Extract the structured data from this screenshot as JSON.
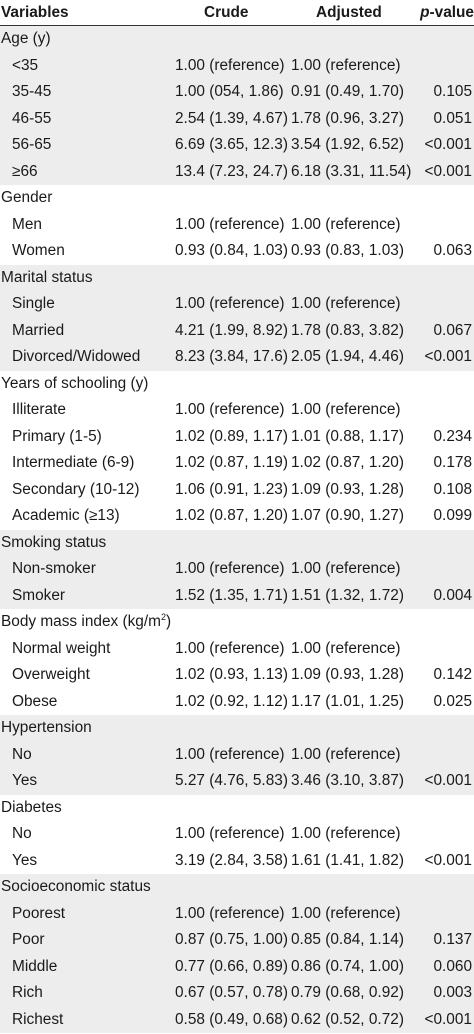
{
  "header": {
    "variables": "Variables",
    "crude": "Crude",
    "adjusted": "Adjusted",
    "p_italic": "p",
    "p_rest": "-value"
  },
  "groups": [
    {
      "title": "Age (y)",
      "rows": [
        {
          "label": "<35",
          "crude": "1.00 (reference)",
          "adjusted": "1.00 (reference)",
          "p": ""
        },
        {
          "label": "35-45",
          "crude": "1.00 (054, 1.86)",
          "adjusted": "0.91 (0.49, 1.70)",
          "p": "0.105"
        },
        {
          "label": "46-55",
          "crude": "2.54 (1.39, 4.67)",
          "adjusted": "1.78 (0.96, 3.27)",
          "p": "0.051"
        },
        {
          "label": "56-65",
          "crude": "6.69 (3.65, 12.3)",
          "adjusted": "3.54 (1.92, 6.52)",
          "p": "<0.001"
        },
        {
          "label": "≥66",
          "crude": "13.4 (7.23, 24.7)",
          "adjusted": "6.18 (3.31, 11.54)",
          "p": "<0.001"
        }
      ]
    },
    {
      "title": "Gender",
      "rows": [
        {
          "label": "Men",
          "crude": "1.00 (reference)",
          "adjusted": "1.00 (reference)",
          "p": ""
        },
        {
          "label": "Women",
          "crude": "0.93 (0.84, 1.03)",
          "adjusted": "0.93 (0.83, 1.03)",
          "p": "0.063"
        }
      ]
    },
    {
      "title": "Marital status",
      "rows": [
        {
          "label": "Single",
          "crude": "1.00 (reference)",
          "adjusted": "1.00 (reference)",
          "p": ""
        },
        {
          "label": "Married",
          "crude": "4.21 (1.99, 8.92)",
          "adjusted": "1.78 (0.83, 3.82)",
          "p": "0.067"
        },
        {
          "label": "Divorced/Widowed",
          "crude": "8.23 (3.84, 17.6)",
          "adjusted": "2.05 (1.94, 4.46)",
          "p": "<0.001"
        }
      ]
    },
    {
      "title": "Years of schooling (y)",
      "rows": [
        {
          "label": "Illiterate",
          "crude": "1.00 (reference)",
          "adjusted": "1.00 (reference)",
          "p": ""
        },
        {
          "label": "Primary (1-5)",
          "crude": "1.02 (0.89, 1.17)",
          "adjusted": "1.01 (0.88, 1.17)",
          "p": "0.234"
        },
        {
          "label": "Intermediate (6-9)",
          "crude": "1.02 (0.87, 1.19)",
          "adjusted": "1.02 (0.87, 1.20)",
          "p": "0.178"
        },
        {
          "label": "Secondary (10-12)",
          "crude": "1.06 (0.91, 1.23)",
          "adjusted": "1.09 (0.93, 1.28)",
          "p": "0.108"
        },
        {
          "label": "Academic (≥13)",
          "crude": "1.02 (0.87, 1.20)",
          "adjusted": "1.07 (0.90, 1.27)",
          "p": "0.099"
        }
      ]
    },
    {
      "title": "Smoking status",
      "rows": [
        {
          "label": "Non-smoker",
          "crude": "1.00 (reference)",
          "adjusted": "1.00 (reference)",
          "p": ""
        },
        {
          "label": "Smoker",
          "crude": "1.52 (1.35, 1.71)",
          "adjusted": "1.51 (1.32, 1.72)",
          "p": "0.004"
        }
      ]
    },
    {
      "title": "Body mass index (kg/m",
      "title_sup": "2",
      "title_end": ")",
      "rows": [
        {
          "label": "Normal weight",
          "crude": "1.00 (reference)",
          "adjusted": "1.00 (reference)",
          "p": ""
        },
        {
          "label": "Overweight",
          "crude": "1.02 (0.93, 1.13)",
          "adjusted": "1.09 (0.93, 1.28)",
          "p": "0.142"
        },
        {
          "label": "Obese",
          "crude": "1.02 (0.92, 1.12)",
          "adjusted": "1.17 (1.01, 1.25)",
          "p": "0.025"
        }
      ]
    },
    {
      "title": "Hypertension",
      "rows": [
        {
          "label": "No",
          "crude": "1.00 (reference)",
          "adjusted": "1.00 (reference)",
          "p": ""
        },
        {
          "label": "Yes",
          "crude": "5.27 (4.76, 5.83)",
          "adjusted": "3.46 (3.10, 3.87)",
          "p": "<0.001"
        }
      ]
    },
    {
      "title": "Diabetes",
      "rows": [
        {
          "label": "No",
          "crude": "1.00 (reference)",
          "adjusted": "1.00 (reference)",
          "p": ""
        },
        {
          "label": "Yes",
          "crude": "3.19 (2.84, 3.58)",
          "adjusted": "1.61 (1.41, 1.82)",
          "p": "<0.001"
        }
      ]
    },
    {
      "title": "Socioeconomic status",
      "rows": [
        {
          "label": "Poorest",
          "crude": "1.00 (reference)",
          "adjusted": "1.00 (reference)",
          "p": ""
        },
        {
          "label": "Poor",
          "crude": "0.87 (0.75, 1.00)",
          "adjusted": "0.85 (0.84, 1.14)",
          "p": "0.137"
        },
        {
          "label": "Middle",
          "crude": "0.77 (0.66, 0.89)",
          "adjusted": "0.86 (0.74, 1.00)",
          "p": "0.060"
        },
        {
          "label": "Rich",
          "crude": "0.67 (0.57, 0.78)",
          "adjusted": "0.79 (0.68, 0.92)",
          "p": "0.003"
        },
        {
          "label": "Richest",
          "crude": "0.58 (0.49, 0.68)",
          "adjusted": "0.62 (0.52, 0.72)",
          "p": "<0.001"
        }
      ]
    }
  ]
}
